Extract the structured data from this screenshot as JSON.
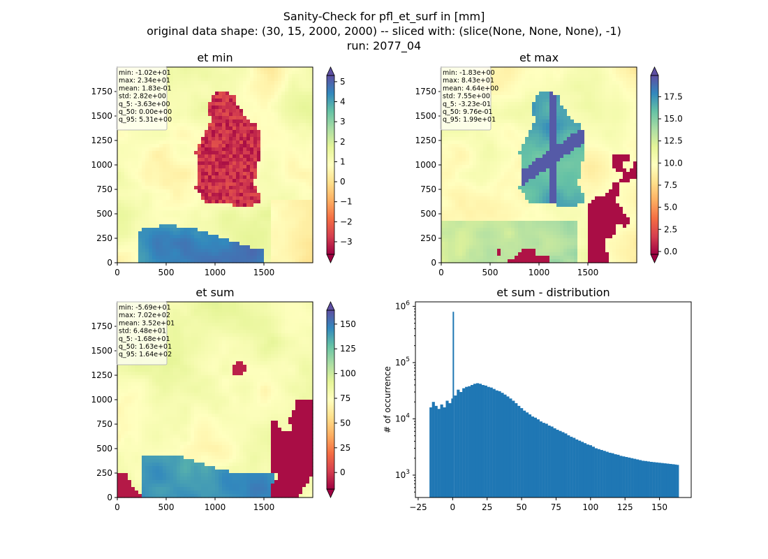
{
  "figure": {
    "title_lines": [
      "Sanity-Check for pfl_et_surf in [mm]",
      "original data shape: (30, 15, 2000, 2000) -- sliced with: (slice(None, None, None), -1)",
      "run: 2077_04"
    ]
  },
  "chart_data": [
    {
      "type": "heatmap",
      "title": "et min",
      "xlabel": "",
      "ylabel": "",
      "x_ticks": [
        0,
        500,
        1000,
        1500
      ],
      "y_ticks": [
        0,
        250,
        500,
        750,
        1000,
        1250,
        1500,
        1750
      ],
      "xlim": [
        0,
        2000
      ],
      "ylim": [
        0,
        2000
      ],
      "colormap": "Spectral",
      "colorbar": {
        "ticks": [
          -3,
          -2,
          -1,
          0,
          1,
          2,
          3,
          4,
          5
        ],
        "tick_labels": [
          "−3",
          "−2",
          "−1",
          "0",
          "1",
          "2",
          "3",
          "4",
          "5"
        ],
        "range": [
          -3.63,
          5.31
        ],
        "extend": "both"
      },
      "stats": [
        "min: -1.02e+01",
        "max: 2.34e+01",
        "mean: 1.83e-01",
        "std: 2.82e+00",
        "q_5: -3.63e+00",
        "q_50: 0.00e+00",
        "q_95: 5.31e+00"
      ]
    },
    {
      "type": "heatmap",
      "title": "et max",
      "xlabel": "",
      "ylabel": "",
      "x_ticks": [
        0,
        500,
        1000,
        1500
      ],
      "y_ticks": [
        0,
        250,
        500,
        750,
        1000,
        1250,
        1500,
        1750
      ],
      "xlim": [
        0,
        2000
      ],
      "ylim": [
        0,
        2000
      ],
      "colormap": "Spectral",
      "colorbar": {
        "ticks": [
          0,
          2.5,
          5,
          7.5,
          10,
          12.5,
          15,
          17.5
        ],
        "tick_labels": [
          "0.0",
          "2.5",
          "5.0",
          "7.5",
          "10.0",
          "12.5",
          "15.0",
          "17.5"
        ],
        "range": [
          -0.323,
          19.9
        ],
        "extend": "both"
      },
      "stats": [
        "min: -1.83e+00",
        "max: 8.43e+01",
        "mean: 4.64e+00",
        "std: 7.55e+00",
        "q_5: -3.23e-01",
        "q_50: 9.76e-01",
        "q_95: 1.99e+01"
      ]
    },
    {
      "type": "heatmap",
      "title": "et sum",
      "xlabel": "",
      "ylabel": "",
      "x_ticks": [
        0,
        500,
        1000,
        1500
      ],
      "y_ticks": [
        0,
        250,
        500,
        750,
        1000,
        1250,
        1500,
        1750
      ],
      "xlim": [
        0,
        2000
      ],
      "ylim": [
        0,
        2000
      ],
      "colormap": "Spectral",
      "colorbar": {
        "ticks": [
          0,
          25,
          50,
          75,
          100,
          125,
          150
        ],
        "tick_labels": [
          "0",
          "25",
          "50",
          "75",
          "100",
          "125",
          "150"
        ],
        "range": [
          -16.8,
          164
        ],
        "extend": "both"
      },
      "stats": [
        "min: -5.69e+01",
        "max: 7.02e+02",
        "mean: 3.52e+01",
        "std: 6.48e+01",
        "q_5: -1.68e+01",
        "q_50: 1.63e+01",
        "q_95: 1.64e+02"
      ]
    },
    {
      "type": "bar",
      "title": "et sum - distribution",
      "xlabel": "",
      "ylabel": "# of occurrence",
      "yscale": "log",
      "xlim": [
        -27,
        173
      ],
      "ylim": [
        400,
        1200000
      ],
      "x_ticks": [
        -25,
        0,
        25,
        50,
        75,
        100,
        125,
        150
      ],
      "x_tick_labels": [
        "−25",
        "0",
        "25",
        "50",
        "75",
        "100",
        "125",
        "150"
      ],
      "y_ticks": [
        1000,
        10000,
        100000,
        1000000
      ],
      "y_tick_exponents": [
        "3",
        "4",
        "5",
        "6"
      ],
      "color": "#1f77b4",
      "bins": [
        [
          -16.8,
          16000
        ],
        [
          -15.0,
          20000
        ],
        [
          -13.0,
          17000
        ],
        [
          -11.0,
          15000
        ],
        [
          -9.0,
          18000
        ],
        [
          -7.0,
          16000
        ],
        [
          -5.0,
          21000
        ],
        [
          -3.0,
          19000
        ],
        [
          -1.0,
          23000
        ],
        [
          0.0,
          800000
        ],
        [
          1.0,
          26000
        ],
        [
          3.0,
          33000
        ],
        [
          5.0,
          30000
        ],
        [
          7.0,
          35000
        ],
        [
          9.0,
          37000
        ],
        [
          11.0,
          38000
        ],
        [
          13.0,
          40000
        ],
        [
          15.0,
          42000
        ],
        [
          17.0,
          43000
        ],
        [
          19.0,
          42000
        ],
        [
          21.0,
          40000
        ],
        [
          23.0,
          39000
        ],
        [
          25.0,
          37000
        ],
        [
          27.0,
          36000
        ],
        [
          29.0,
          34000
        ],
        [
          31.0,
          32000
        ],
        [
          33.0,
          31000
        ],
        [
          35.0,
          29000
        ],
        [
          37.0,
          27000
        ],
        [
          39.0,
          25000
        ],
        [
          41.0,
          23000
        ],
        [
          43.0,
          21000
        ],
        [
          45.0,
          19000
        ],
        [
          47.0,
          17000
        ],
        [
          49.0,
          15500
        ],
        [
          51.0,
          14000
        ],
        [
          53.0,
          13000
        ],
        [
          55.0,
          12000
        ],
        [
          57.0,
          11000
        ],
        [
          59.0,
          10500
        ],
        [
          61.0,
          9800
        ],
        [
          63.0,
          9000
        ],
        [
          65.0,
          8500
        ],
        [
          67.0,
          8200
        ],
        [
          69.0,
          7600
        ],
        [
          71.0,
          7300
        ],
        [
          73.0,
          6800
        ],
        [
          75.0,
          6400
        ],
        [
          77.0,
          6100
        ],
        [
          79.0,
          5800
        ],
        [
          81.0,
          5500
        ],
        [
          83.0,
          5100
        ],
        [
          85.0,
          4800
        ],
        [
          87.0,
          4600
        ],
        [
          89.0,
          4300
        ],
        [
          91.0,
          4100
        ],
        [
          93.0,
          3900
        ],
        [
          95.0,
          3700
        ],
        [
          97.0,
          3500
        ],
        [
          99.0,
          3400
        ],
        [
          101.0,
          3200
        ],
        [
          103.0,
          3000
        ],
        [
          105.0,
          2900
        ],
        [
          107.0,
          2800
        ],
        [
          109.0,
          2700
        ],
        [
          111.0,
          2600
        ],
        [
          113.0,
          2500
        ],
        [
          115.0,
          2450
        ],
        [
          117.0,
          2350
        ],
        [
          119.0,
          2300
        ],
        [
          121.0,
          2200
        ],
        [
          123.0,
          2150
        ],
        [
          125.0,
          2100
        ],
        [
          127.0,
          2050
        ],
        [
          129.0,
          2000
        ],
        [
          131.0,
          1950
        ],
        [
          133.0,
          1900
        ],
        [
          135.0,
          1850
        ],
        [
          137.0,
          1800
        ],
        [
          139.0,
          1780
        ],
        [
          141.0,
          1750
        ],
        [
          143.0,
          1720
        ],
        [
          145.0,
          1700
        ],
        [
          147.0,
          1680
        ],
        [
          149.0,
          1660
        ],
        [
          151.0,
          1640
        ],
        [
          153.0,
          1620
        ],
        [
          155.0,
          1600
        ],
        [
          157.0,
          1580
        ],
        [
          159.0,
          1560
        ],
        [
          161.0,
          1540
        ],
        [
          162.5,
          1520
        ]
      ]
    }
  ]
}
